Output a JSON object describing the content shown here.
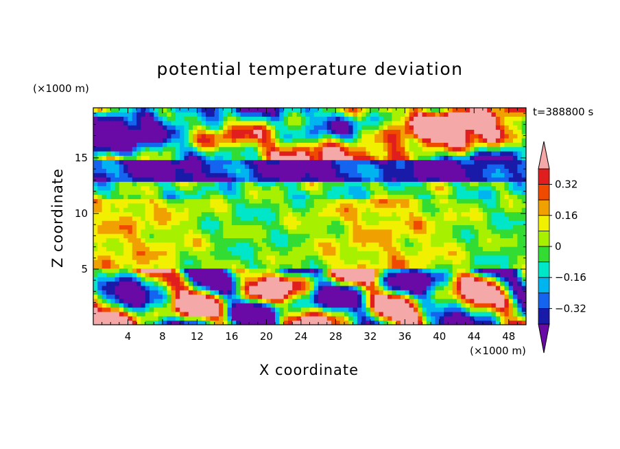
{
  "chart_data": {
    "type": "heatmap",
    "title": "potential temperature deviation",
    "xlabel": "X coordinate",
    "ylabel": "Z coordinate",
    "x_unit": "(×1000 m)",
    "y_unit": "(×1000 m)",
    "time_label": "t=388800 s",
    "xlim": [
      0,
      50
    ],
    "ylim": [
      0,
      19.5
    ],
    "x_ticks": [
      4,
      8,
      12,
      16,
      20,
      24,
      28,
      32,
      36,
      40,
      44,
      48
    ],
    "y_ticks": [
      5,
      10,
      15
    ],
    "colorbar": {
      "levels": [
        -0.4,
        -0.32,
        -0.24,
        -0.16,
        -0.08,
        0,
        0.08,
        0.16,
        0.24,
        0.32,
        0.4
      ],
      "labels": [
        "0.32",
        "0.16",
        "0",
        "-0.16",
        "-0.32"
      ],
      "label_values": [
        0.32,
        0.16,
        0,
        -0.16,
        -0.32
      ],
      "colors": [
        "#6a0aa6",
        "#1a1aa8",
        "#1464f0",
        "#00b4f0",
        "#00e6c8",
        "#32dc32",
        "#a6f000",
        "#f0f000",
        "#f0a000",
        "#f04a00",
        "#e01e1e",
        "#f4a8a8"
      ]
    },
    "field_bands": [
      {
        "z_range": [
          15,
          19.5
        ],
        "description_values": [
          -0.4,
          0.4
        ]
      },
      {
        "z_range": [
          13,
          15
        ],
        "description_values": [
          -0.4,
          -0.24
        ]
      },
      {
        "z_range": [
          5,
          12
        ],
        "description_values": [
          -0.08,
          0.16
        ]
      },
      {
        "z_range": [
          0,
          5
        ],
        "description_values": [
          -0.4,
          0.4
        ]
      }
    ]
  }
}
